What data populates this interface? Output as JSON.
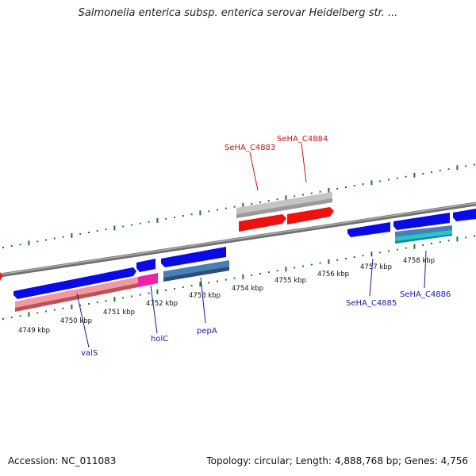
{
  "title": "Salmonella enterica subsp. enterica serovar Heidelberg str. ...",
  "footer": {
    "accession": "Accession: NC_011083",
    "summary": "Topology: circular; Length: 4,888,768 bp; Genes: 4,756"
  },
  "colors": {
    "backbone": "#808080",
    "tick": "#1a7a1a",
    "forward_gene": "#0a0ae6",
    "reverse_gene": "#f01010",
    "rna": "#ee88aa",
    "gray_feature": "#c8c8c8",
    "steel_feature": "#4a7fb5",
    "cyan_feature": "#22c8d0",
    "magenta_feature": "#ee22aa",
    "label_blue": "#1a1aa0",
    "label_red": "#cc1111"
  },
  "ticks": [
    "4749 kbp",
    "4750 kbp",
    "4751 kbp",
    "4752 kbp",
    "4753 kbp",
    "4754 kbp",
    "4755 kbp",
    "4756 kbp",
    "4757 kbp",
    "4758 kbp"
  ],
  "genes": [
    {
      "name": "valS",
      "strand": "forward",
      "color": "label_blue"
    },
    {
      "name": "holC",
      "strand": "forward",
      "color": "label_blue"
    },
    {
      "name": "pepA",
      "strand": "forward",
      "color": "label_blue"
    },
    {
      "name": "SeHA_C4883",
      "strand": "reverse",
      "color": "label_red"
    },
    {
      "name": "SeHA_C4884",
      "strand": "reverse",
      "color": "label_red"
    },
    {
      "name": "SeHA_C4885",
      "strand": "forward",
      "color": "label_blue"
    },
    {
      "name": "SeHA_C4886",
      "strand": "forward",
      "color": "label_blue"
    }
  ]
}
